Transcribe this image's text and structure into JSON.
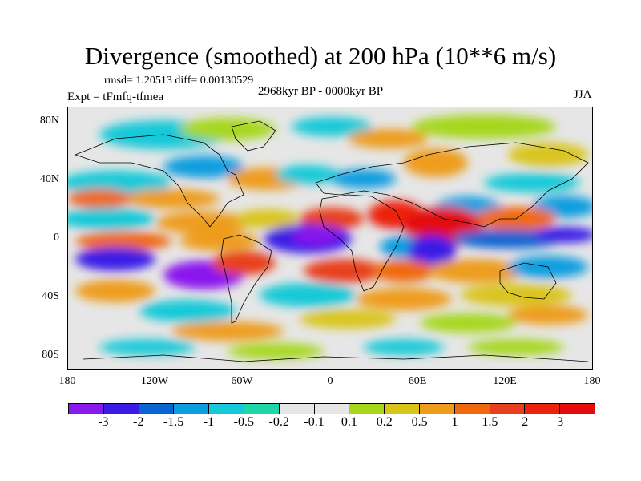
{
  "title": "Divergence (smoothed) at 200 hPa (10**6 m/s)",
  "stats": "rmsd= 1.20513 diff= 0.00130529",
  "experiment": "Expt = tFmfq-tfmea",
  "period": "2968kyr BP - 0000kyr BP",
  "season": "JJA",
  "axes": {
    "y_labels": [
      "80N",
      "40N",
      "0",
      "40S",
      "80S"
    ],
    "x_labels": [
      "180",
      "120W",
      "60W",
      "0",
      "60E",
      "120E",
      "180"
    ]
  },
  "colorbar": {
    "labels": [
      "-3",
      "-2",
      "-1.5",
      "-1",
      "-0.5",
      "-0.2",
      "-0.1",
      "0.1",
      "0.2",
      "0.5",
      "1",
      "1.5",
      "2",
      "3"
    ],
    "colors": [
      "#8a19ee",
      "#3a1ce6",
      "#0a64d2",
      "#0d9ee0",
      "#15c9d8",
      "#1fd6a8",
      "#e6e6e6",
      "#e6e6e6",
      "#a6d71c",
      "#d9c51a",
      "#ee9c1a",
      "#f0690e",
      "#e8401e",
      "#ec2210",
      "#e30b0b"
    ]
  }
}
